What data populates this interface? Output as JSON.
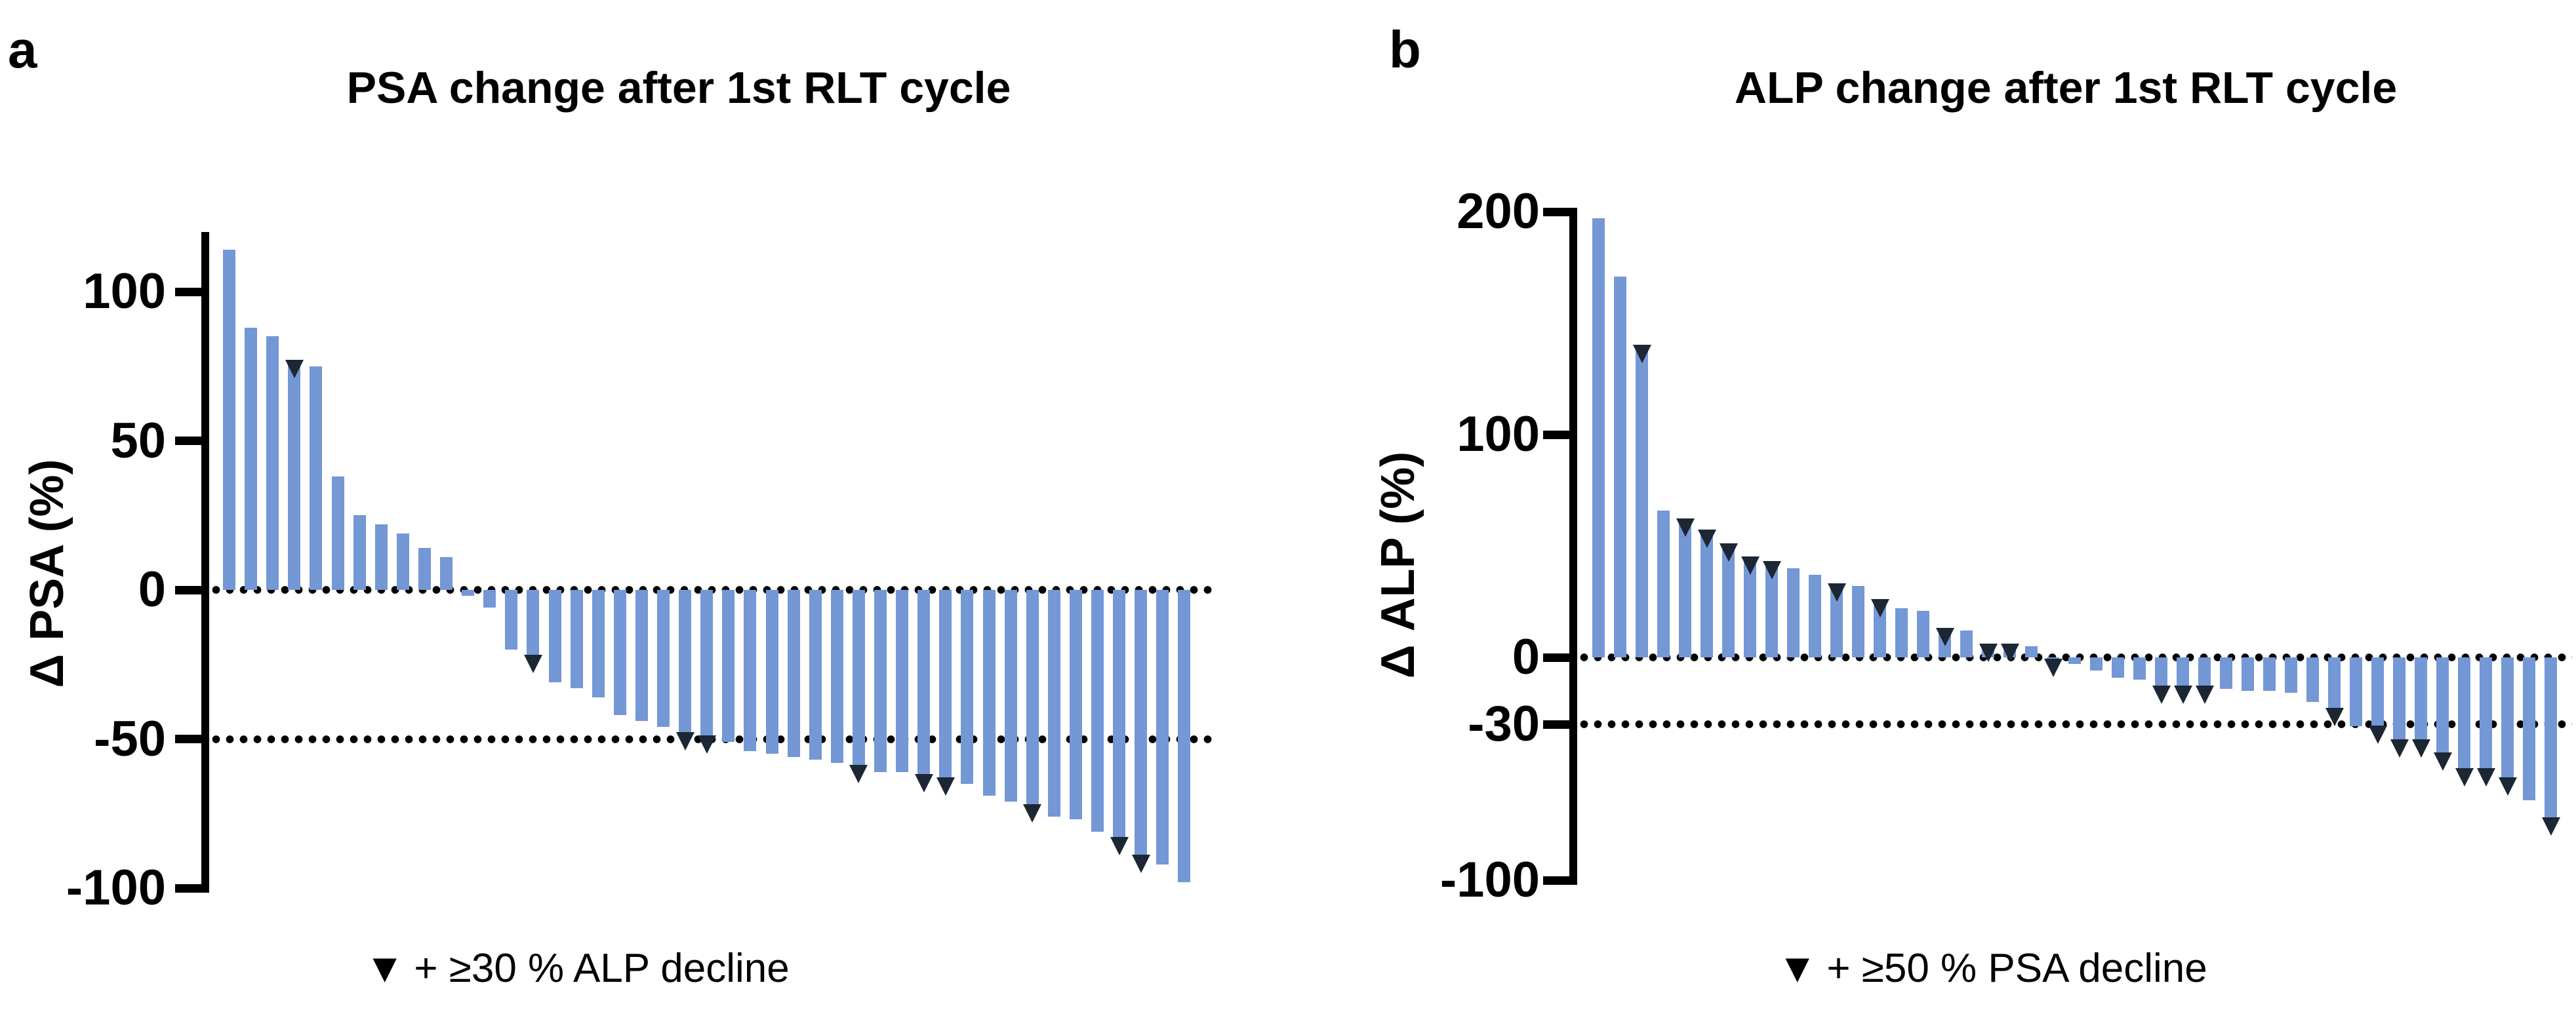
{
  "figure": {
    "background": "#ffffff",
    "text_color": "#000000"
  },
  "chart_data": [
    {
      "type": "bar",
      "panel": "a",
      "title": "PSA change after 1st RLT cycle",
      "ylabel": "Δ PSA (%)",
      "yticks": [
        100,
        50,
        0,
        -50,
        -100
      ],
      "ylim": [
        -100,
        115
      ],
      "grid": false,
      "threshold_lines": [
        0,
        -50
      ],
      "legend": {
        "marker": "▼",
        "text": "+ ≥30 % ALP decline",
        "position": "bottom"
      },
      "bar_color": "#7497d5",
      "marker_color": "#1c2733",
      "values": [
        114,
        88,
        85,
        77,
        75,
        38,
        25,
        22,
        19,
        14,
        11,
        -2,
        -6,
        -20,
        -22,
        -31,
        -33,
        -36,
        -42,
        -44,
        -46,
        -48,
        -49,
        -51,
        -54,
        -55,
        -56,
        -57,
        -58,
        -59,
        -61,
        -61,
        -62,
        -63,
        -65,
        -69,
        -71,
        -72,
        -76,
        -77,
        -81,
        -83,
        -89,
        -92,
        -98
      ],
      "marker_indices": [
        3,
        14,
        21,
        22,
        29,
        32,
        33,
        37,
        41,
        42
      ]
    },
    {
      "type": "bar",
      "panel": "b",
      "title": "ALP change after 1st RLT cycle",
      "ylabel": "Δ ALP (%)",
      "yticks": [
        200,
        100,
        0,
        -30,
        -100
      ],
      "ylim": [
        -100,
        200
      ],
      "grid": false,
      "threshold_lines": [
        0,
        -30
      ],
      "legend": {
        "marker": "▼",
        "text": "+ ≥50 % PSA decline",
        "position": "bottom"
      },
      "bar_color": "#7497d5",
      "marker_color": "#1c2733",
      "values": [
        197,
        171,
        140,
        66,
        62,
        57,
        51,
        45,
        43,
        40,
        37,
        33,
        32,
        26,
        22,
        21,
        13,
        12,
        6,
        6,
        5,
        -1,
        -3,
        -6,
        -9,
        -10,
        -13,
        -13,
        -13,
        -14,
        -15,
        -15,
        -16,
        -20,
        -23,
        -31,
        -31,
        -37,
        -37,
        -43,
        -50,
        -50,
        -54,
        -64,
        -72
      ],
      "marker_indices": [
        2,
        4,
        5,
        6,
        7,
        8,
        11,
        13,
        16,
        18,
        19,
        21,
        26,
        27,
        28,
        34,
        36,
        37,
        38,
        39,
        40,
        41,
        42,
        44
      ]
    }
  ]
}
